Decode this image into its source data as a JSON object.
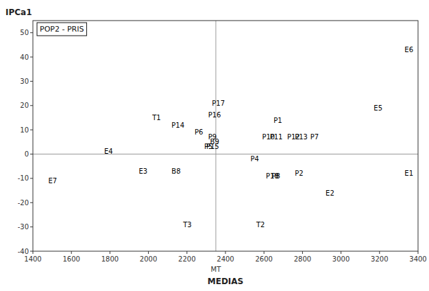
{
  "chart_data": {
    "type": "scatter",
    "title": "POP2 - PRIS",
    "xlabel": "MEDIAS",
    "ylabel": "IPCa1",
    "labels": [
      "E6",
      "E5",
      "E1",
      "E2",
      "E3",
      "E4",
      "E7",
      "T1",
      "T2",
      "T3",
      "P1",
      "P2",
      "P4",
      "P5",
      "P6",
      "P7",
      "P8",
      "P9",
      "P10",
      "P11",
      "P12",
      "P13",
      "P14",
      "P15",
      "P16",
      "P17",
      "P18",
      "B8",
      "B9"
    ],
    "x": [
      3330,
      3170,
      3330,
      2920,
      1950,
      1770,
      1480,
      2020,
      2560,
      2180,
      2650,
      2760,
      2530,
      2290,
      2240,
      2840,
      2640,
      2310,
      2590,
      2630,
      2720,
      2760,
      2120,
      2300,
      2310,
      2330,
      2610,
      2120,
      2320
    ],
    "values": [
      43,
      19,
      -8,
      -16,
      -7,
      1,
      -11,
      15,
      -29,
      -29,
      14,
      -8,
      -2,
      3,
      9,
      7,
      -9,
      7,
      7,
      7,
      7,
      7,
      12,
      3,
      16,
      21,
      -9,
      -7,
      5
    ],
    "color": "black",
    "xlim": [
      1400,
      3400
    ],
    "ylim": [
      -40,
      55
    ],
    "xticks": [
      1400,
      1600,
      1800,
      2000,
      2200,
      2400,
      2600,
      2800,
      3000,
      3200,
      3400
    ],
    "yticks": [
      -40,
      -30,
      -20,
      -10,
      0,
      10,
      20,
      30,
      40,
      50
    ],
    "vline": {
      "value": 2350,
      "label": "MT"
    },
    "hline": 0,
    "grid": false
  }
}
